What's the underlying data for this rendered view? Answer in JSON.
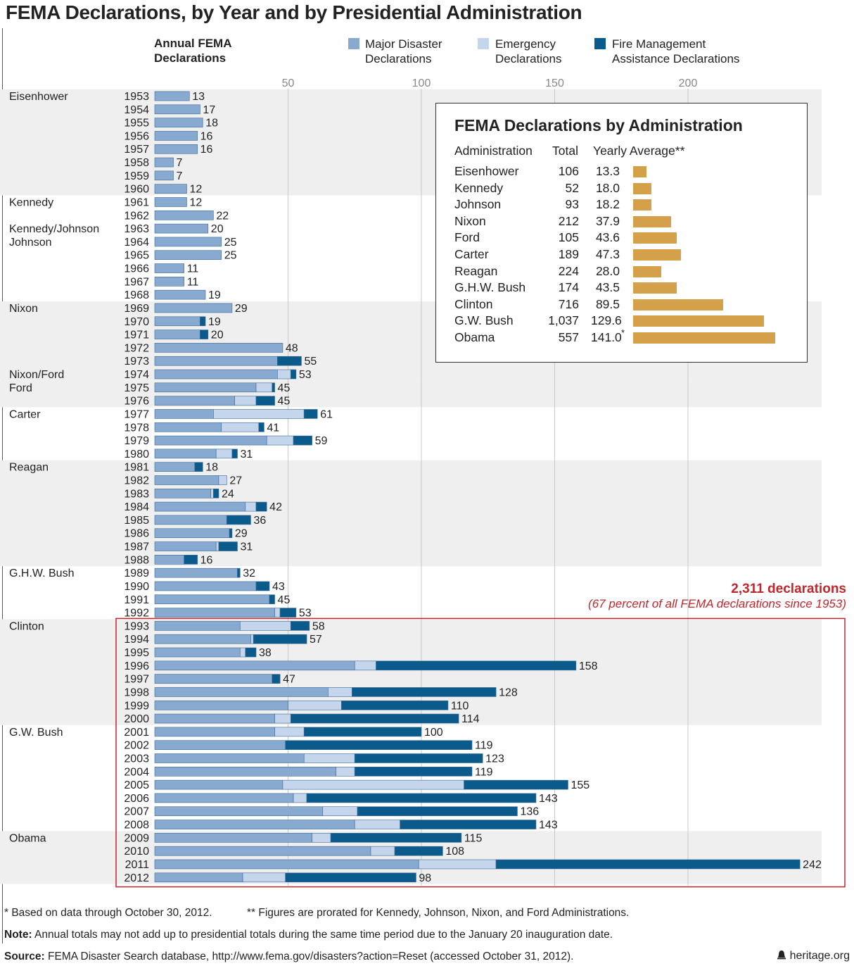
{
  "title": "FEMA Declarations, by Year and by Presidential Administration",
  "header": {
    "annual_line1": "Annual FEMA",
    "annual_line2": "Declarations",
    "legend": [
      {
        "line1": "Major Disaster",
        "line2": "Declarations",
        "color": "#88a9d0"
      },
      {
        "line1": "Emergency",
        "line2": "Declarations",
        "color": "#c5d5eb"
      },
      {
        "line1": "Fire Management",
        "line2": "Assistance Declarations",
        "color": "#0b5a8c"
      }
    ]
  },
  "colors": {
    "major": "#88a9d0",
    "emergency": "#c5d5eb",
    "fire": "#0b5a8c",
    "stripe": "#efefef",
    "highlight": "#c0272d",
    "summary_bar": "#d4a04a"
  },
  "chart_data": {
    "type": "bar",
    "orientation": "horizontal",
    "stacked": true,
    "xlim": [
      0,
      250
    ],
    "xticks": [
      50,
      100,
      150,
      200
    ],
    "series_names": [
      "Major Disaster Declarations",
      "Emergency Declarations",
      "Fire Management Assistance Declarations"
    ],
    "rows": [
      {
        "year": "1953",
        "admin": "Eisenhower",
        "major": 13,
        "emergency": 0,
        "fire": 0,
        "total": 13
      },
      {
        "year": "1954",
        "admin": "",
        "major": 17,
        "emergency": 0,
        "fire": 0,
        "total": 17
      },
      {
        "year": "1955",
        "admin": "",
        "major": 18,
        "emergency": 0,
        "fire": 0,
        "total": 18
      },
      {
        "year": "1956",
        "admin": "",
        "major": 16,
        "emergency": 0,
        "fire": 0,
        "total": 16
      },
      {
        "year": "1957",
        "admin": "",
        "major": 16,
        "emergency": 0,
        "fire": 0,
        "total": 16
      },
      {
        "year": "1958",
        "admin": "",
        "major": 7,
        "emergency": 0,
        "fire": 0,
        "total": 7
      },
      {
        "year": "1959",
        "admin": "",
        "major": 7,
        "emergency": 0,
        "fire": 0,
        "total": 7
      },
      {
        "year": "1960",
        "admin": "",
        "major": 12,
        "emergency": 0,
        "fire": 0,
        "total": 12
      },
      {
        "year": "1961",
        "admin": "Kennedy",
        "major": 12,
        "emergency": 0,
        "fire": 0,
        "total": 12
      },
      {
        "year": "1962",
        "admin": "",
        "major": 22,
        "emergency": 0,
        "fire": 0,
        "total": 22
      },
      {
        "year": "1963",
        "admin": "Kennedy/Johnson",
        "major": 20,
        "emergency": 0,
        "fire": 0,
        "total": 20
      },
      {
        "year": "1964",
        "admin": "Johnson",
        "major": 25,
        "emergency": 0,
        "fire": 0,
        "total": 25
      },
      {
        "year": "1965",
        "admin": "",
        "major": 25,
        "emergency": 0,
        "fire": 0,
        "total": 25
      },
      {
        "year": "1966",
        "admin": "",
        "major": 11,
        "emergency": 0,
        "fire": 0,
        "total": 11
      },
      {
        "year": "1967",
        "admin": "",
        "major": 11,
        "emergency": 0,
        "fire": 0,
        "total": 11
      },
      {
        "year": "1968",
        "admin": "",
        "major": 19,
        "emergency": 0,
        "fire": 0,
        "total": 19
      },
      {
        "year": "1969",
        "admin": "Nixon",
        "major": 29,
        "emergency": 0,
        "fire": 0,
        "total": 29
      },
      {
        "year": "1970",
        "admin": "",
        "major": 17,
        "emergency": 0,
        "fire": 2,
        "total": 19
      },
      {
        "year": "1971",
        "admin": "",
        "major": 17,
        "emergency": 0,
        "fire": 3,
        "total": 20
      },
      {
        "year": "1972",
        "admin": "",
        "major": 48,
        "emergency": 0,
        "fire": 0,
        "total": 48
      },
      {
        "year": "1973",
        "admin": "",
        "major": 46,
        "emergency": 0,
        "fire": 9,
        "total": 55
      },
      {
        "year": "1974",
        "admin": "Nixon/Ford",
        "major": 46,
        "emergency": 5,
        "fire": 2,
        "total": 53
      },
      {
        "year": "1975",
        "admin": "Ford",
        "major": 38,
        "emergency": 6,
        "fire": 1,
        "total": 45
      },
      {
        "year": "1976",
        "admin": "",
        "major": 30,
        "emergency": 8,
        "fire": 7,
        "total": 45
      },
      {
        "year": "1977",
        "admin": "Carter",
        "major": 22,
        "emergency": 34,
        "fire": 5,
        "total": 61
      },
      {
        "year": "1978",
        "admin": "",
        "major": 25,
        "emergency": 14,
        "fire": 2,
        "total": 41
      },
      {
        "year": "1979",
        "admin": "",
        "major": 42,
        "emergency": 10,
        "fire": 7,
        "total": 59
      },
      {
        "year": "1980",
        "admin": "",
        "major": 23,
        "emergency": 6,
        "fire": 2,
        "total": 31
      },
      {
        "year": "1981",
        "admin": "Reagan",
        "major": 15,
        "emergency": 0,
        "fire": 3,
        "total": 18
      },
      {
        "year": "1982",
        "admin": "",
        "major": 24,
        "emergency": 3,
        "fire": 0,
        "total": 27
      },
      {
        "year": "1983",
        "admin": "",
        "major": 21,
        "emergency": 1,
        "fire": 2,
        "total": 24
      },
      {
        "year": "1984",
        "admin": "",
        "major": 34,
        "emergency": 4,
        "fire": 4,
        "total": 42
      },
      {
        "year": "1985",
        "admin": "",
        "major": 27,
        "emergency": 0,
        "fire": 9,
        "total": 36
      },
      {
        "year": "1986",
        "admin": "",
        "major": 28,
        "emergency": 0,
        "fire": 1,
        "total": 29
      },
      {
        "year": "1987",
        "admin": "",
        "major": 23,
        "emergency": 1,
        "fire": 7,
        "total": 31
      },
      {
        "year": "1988",
        "admin": "",
        "major": 11,
        "emergency": 0,
        "fire": 5,
        "total": 16
      },
      {
        "year": "1989",
        "admin": "G.H.W. Bush",
        "major": 31,
        "emergency": 0,
        "fire": 1,
        "total": 32
      },
      {
        "year": "1990",
        "admin": "",
        "major": 38,
        "emergency": 0,
        "fire": 5,
        "total": 43
      },
      {
        "year": "1991",
        "admin": "",
        "major": 43,
        "emergency": 0,
        "fire": 2,
        "total": 45
      },
      {
        "year": "1992",
        "admin": "",
        "major": 45,
        "emergency": 2,
        "fire": 6,
        "total": 53
      },
      {
        "year": "1993",
        "admin": "Clinton",
        "major": 32,
        "emergency": 19,
        "fire": 7,
        "total": 58
      },
      {
        "year": "1994",
        "admin": "",
        "major": 36,
        "emergency": 1,
        "fire": 20,
        "total": 57
      },
      {
        "year": "1995",
        "admin": "",
        "major": 32,
        "emergency": 2,
        "fire": 4,
        "total": 38
      },
      {
        "year": "1996",
        "admin": "",
        "major": 75,
        "emergency": 8,
        "fire": 75,
        "total": 158
      },
      {
        "year": "1997",
        "admin": "",
        "major": 44,
        "emergency": 0,
        "fire": 3,
        "total": 47
      },
      {
        "year": "1998",
        "admin": "",
        "major": 65,
        "emergency": 9,
        "fire": 54,
        "total": 128
      },
      {
        "year": "1999",
        "admin": "",
        "major": 50,
        "emergency": 20,
        "fire": 40,
        "total": 110
      },
      {
        "year": "2000",
        "admin": "",
        "major": 45,
        "emergency": 6,
        "fire": 63,
        "total": 114
      },
      {
        "year": "2001",
        "admin": "G.W. Bush",
        "major": 45,
        "emergency": 11,
        "fire": 44,
        "total": 100
      },
      {
        "year": "2002",
        "admin": "",
        "major": 49,
        "emergency": 0,
        "fire": 70,
        "total": 119
      },
      {
        "year": "2003",
        "admin": "",
        "major": 56,
        "emergency": 19,
        "fire": 48,
        "total": 123
      },
      {
        "year": "2004",
        "admin": "",
        "major": 68,
        "emergency": 7,
        "fire": 44,
        "total": 119
      },
      {
        "year": "2005",
        "admin": "",
        "major": 48,
        "emergency": 68,
        "fire": 39,
        "total": 155
      },
      {
        "year": "2006",
        "admin": "",
        "major": 52,
        "emergency": 5,
        "fire": 86,
        "total": 143
      },
      {
        "year": "2007",
        "admin": "",
        "major": 63,
        "emergency": 13,
        "fire": 60,
        "total": 136
      },
      {
        "year": "2008",
        "admin": "",
        "major": 75,
        "emergency": 17,
        "fire": 51,
        "total": 143
      },
      {
        "year": "2009",
        "admin": "Obama",
        "major": 59,
        "emergency": 7,
        "fire": 49,
        "total": 115
      },
      {
        "year": "2010",
        "admin": "",
        "major": 81,
        "emergency": 9,
        "fire": 18,
        "total": 108
      },
      {
        "year": "2011",
        "admin": "",
        "major": 99,
        "emergency": 29,
        "fire": 114,
        "total": 242
      },
      {
        "year": "2012",
        "admin": "",
        "major": 33,
        "emergency": 16,
        "fire": 49,
        "total": 98
      }
    ],
    "stripes": [
      {
        "from": "1953",
        "to": "1960"
      },
      {
        "from": "1969",
        "to": "1974"
      },
      {
        "from": "1975",
        "to": "1976"
      },
      {
        "from": "1981",
        "to": "1988"
      },
      {
        "from": "1993",
        "to": "2000"
      },
      {
        "from": "2009",
        "to": "2012"
      }
    ],
    "highlight_range": {
      "from": "1993",
      "to": "2012"
    }
  },
  "summary": {
    "title": "FEMA Declarations by Administration",
    "col_admin": "Administration",
    "col_total": "Total",
    "col_avg": "Yearly Average**",
    "bar_max": 141.0,
    "rows": [
      {
        "admin": "Eisenhower",
        "total": "106",
        "avg": "13.3",
        "avg_value": 13.3,
        "mark": ""
      },
      {
        "admin": "Kennedy",
        "total": "52",
        "avg": "18.0",
        "avg_value": 18.0,
        "mark": ""
      },
      {
        "admin": "Johnson",
        "total": "93",
        "avg": "18.2",
        "avg_value": 18.2,
        "mark": ""
      },
      {
        "admin": "Nixon",
        "total": "212",
        "avg": "37.9",
        "avg_value": 37.9,
        "mark": ""
      },
      {
        "admin": "Ford",
        "total": "105",
        "avg": "43.6",
        "avg_value": 43.6,
        "mark": ""
      },
      {
        "admin": "Carter",
        "total": "189",
        "avg": "47.3",
        "avg_value": 47.3,
        "mark": ""
      },
      {
        "admin": "Reagan",
        "total": "224",
        "avg": "28.0",
        "avg_value": 28.0,
        "mark": ""
      },
      {
        "admin": "G.H.W. Bush",
        "total": "174",
        "avg": "43.5",
        "avg_value": 43.5,
        "mark": ""
      },
      {
        "admin": "Clinton",
        "total": "716",
        "avg": "89.5",
        "avg_value": 89.5,
        "mark": ""
      },
      {
        "admin": "G.W. Bush",
        "total": "1,037",
        "avg": "129.6",
        "avg_value": 129.6,
        "mark": ""
      },
      {
        "admin": "Obama",
        "total": "557",
        "avg": "141.0",
        "avg_value": 141.0,
        "mark": "*"
      }
    ]
  },
  "callout": {
    "headline": "2,311 declarations",
    "subline": "(67 percent of all FEMA declarations since 1953)"
  },
  "footer": {
    "note1": "* Based on data through October 30, 2012.",
    "note2": "** Figures are prorated for Kennedy, Johnson, Nixon, and Ford Administrations.",
    "note_label": "Note:",
    "note_text": " Annual totals may not add up to presidential totals during the same time period due to the January 20 inauguration date.",
    "source_label": "Source:",
    "source_text": " FEMA Disaster Search database, http://www.fema.gov/disasters?action=Reset (accessed October 31, 2012).",
    "logo": "heritage.org",
    "logo_icon": "bell-icon"
  }
}
